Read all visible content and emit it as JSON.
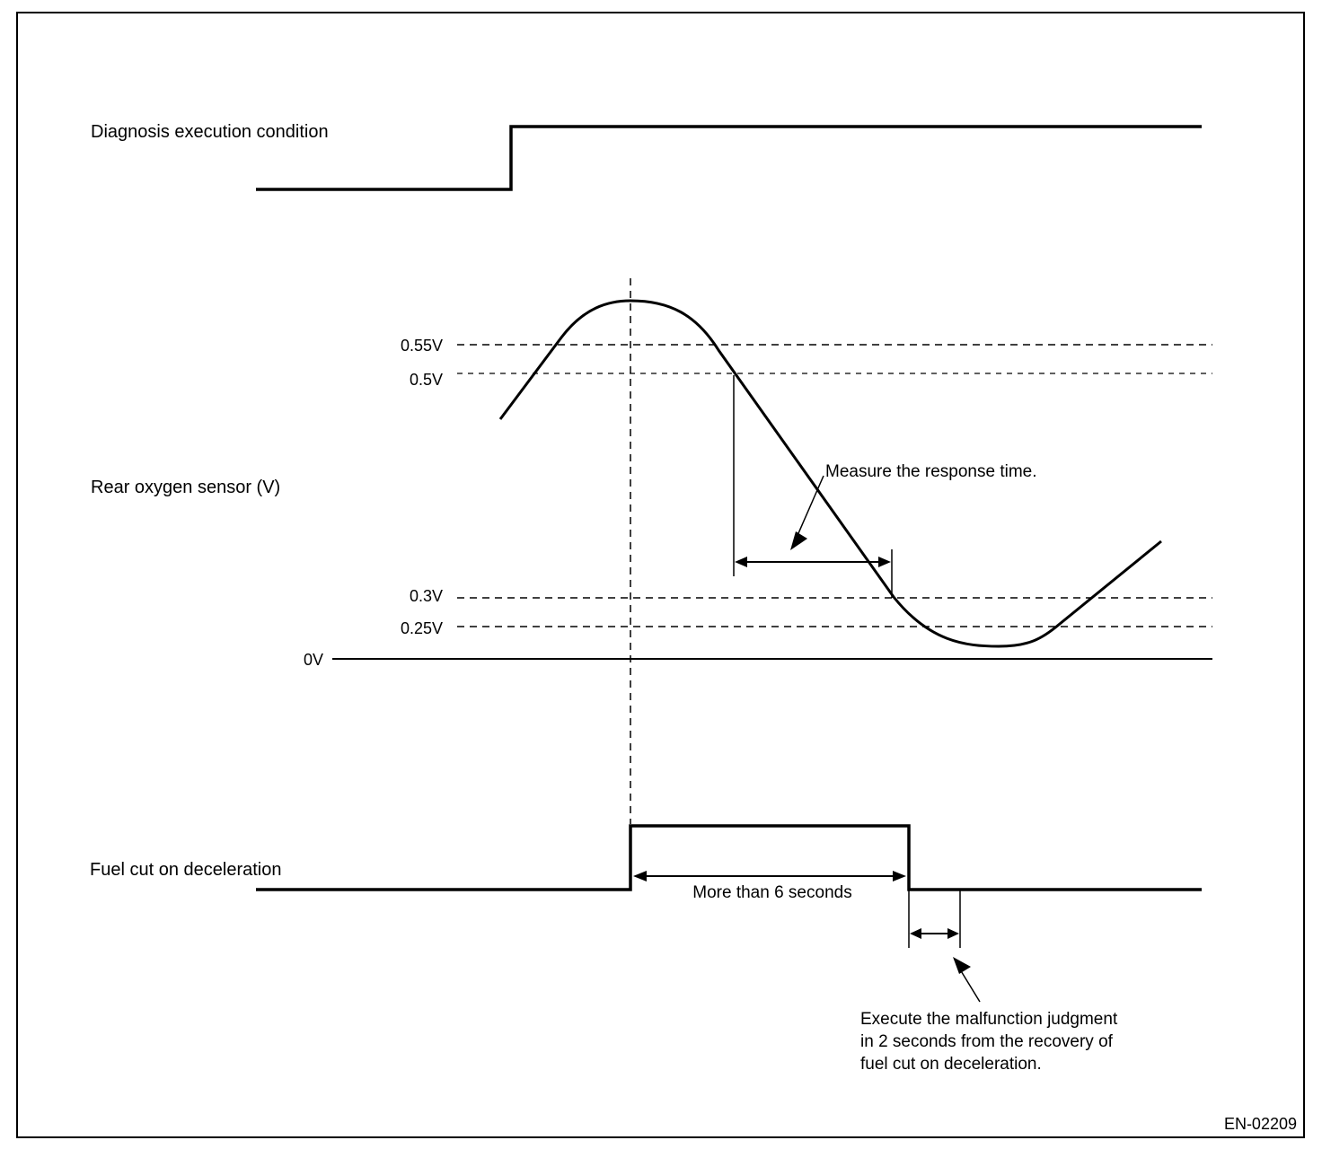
{
  "labels": {
    "diagnosis_condition": "Diagnosis execution condition",
    "rear_o2_sensor": "Rear oxygen sensor (V)",
    "fuel_cut": "Fuel cut on deceleration"
  },
  "voltage_levels": {
    "v055": "0.55V",
    "v05": "0.5V",
    "v03": "0.3V",
    "v025": "0.25V",
    "v0": "0V"
  },
  "annotations": {
    "response_time": "Measure the response time.",
    "more_than_6s": "More than 6 seconds",
    "judgment_line1": "Execute the malfunction judgment",
    "judgment_line2": "in 2 seconds from the recovery of",
    "judgment_line3": "fuel cut on deceleration."
  },
  "figure_id": "EN-02209"
}
